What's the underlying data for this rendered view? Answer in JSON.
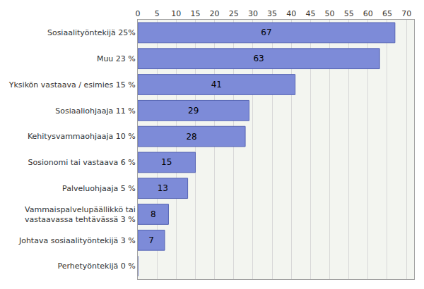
{
  "chart_data": {
    "type": "bar",
    "orientation": "horizontal",
    "categories": [
      "Sosiaalityöntekijä 25%",
      "Muu 23 %",
      "Yksikön vastaava / esimies 15 %",
      "Sosiaaliohjaaja 11 %",
      "Kehitysvammaohjaaja 10 %",
      "Sosionomi tai vastaava 6 %",
      "Palveluohjaaja 5 %",
      "Vammaispalvelupäällikkö tai\nvastaavassa tehtävässä 3 %",
      "Johtava sosiaalityöntekijä 3 %",
      "Perhetyöntekijä 0 %"
    ],
    "values": [
      67,
      63,
      41,
      29,
      28,
      15,
      13,
      8,
      7,
      0
    ],
    "color": "#7d8bd8",
    "xlim": [
      0,
      72
    ],
    "xticks": [
      0,
      5,
      10,
      15,
      20,
      25,
      30,
      35,
      40,
      45,
      50,
      55,
      60,
      65,
      70
    ],
    "grid": true,
    "data_labels": true
  }
}
